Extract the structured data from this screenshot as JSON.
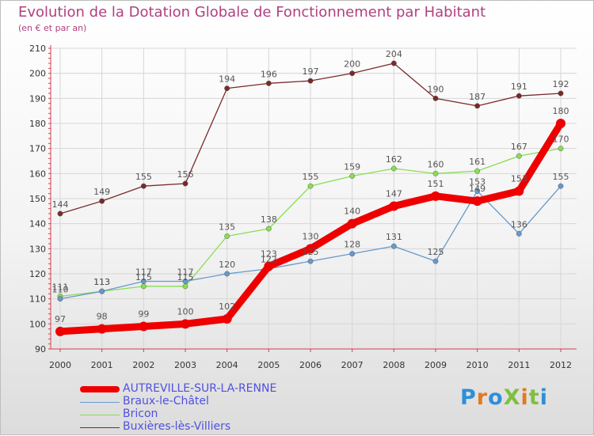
{
  "header": {
    "title": "Evolution de la Dotation Globale de Fonctionnement par Habitant",
    "subtitle": "(en € et par an)"
  },
  "brand": {
    "text": "ProXiti"
  },
  "colors": {
    "title": "#b04080",
    "legend_text": "#5050e0",
    "axis": "#d04050"
  },
  "chart_data": {
    "type": "line",
    "title": "Evolution de la Dotation Globale de Fonctionnement par Habitant",
    "subtitle": "(en € et par an)",
    "xlabel": "",
    "ylabel": "",
    "x": [
      "2000",
      "2001",
      "2002",
      "2003",
      "2004",
      "2005",
      "2006",
      "2007",
      "2008",
      "2009",
      "2010",
      "2011",
      "2012"
    ],
    "ylim": [
      90,
      210
    ],
    "yticks": [
      90,
      100,
      110,
      120,
      130,
      140,
      150,
      160,
      170,
      180,
      190,
      200,
      210
    ],
    "grid": true,
    "legend_position": "bottom-left",
    "series": [
      {
        "name": "AUTREVILLE-SUR-LA-RENNE",
        "color": "#ee0000",
        "thick": true,
        "values": [
          97,
          98,
          99,
          100,
          102,
          123,
          130,
          140,
          147,
          151,
          149,
          153,
          180
        ],
        "labels": [
          "97",
          "98",
          "99",
          "100",
          "102",
          "123",
          "130",
          "140",
          "147",
          "151",
          "149",
          "153",
          "180"
        ]
      },
      {
        "name": "Braux-le-Châtel",
        "color": "#6699cc",
        "thick": false,
        "values": [
          110,
          113,
          117,
          117,
          120,
          122,
          125,
          128,
          131,
          125,
          153,
          136,
          155
        ],
        "labels": [
          "110",
          "113",
          "117",
          "117",
          "120",
          "122",
          "125",
          "128",
          "131",
          "125",
          "153",
          "136",
          "155"
        ]
      },
      {
        "name": "Bricon",
        "color": "#88dd55",
        "thick": false,
        "values": [
          111,
          113,
          115,
          115,
          135,
          138,
          155,
          159,
          162,
          160,
          161,
          167,
          170
        ],
        "labels": [
          "111",
          "113",
          "115",
          "115",
          "135",
          "138",
          "155",
          "159",
          "162",
          "160",
          "161",
          "167",
          "170"
        ]
      },
      {
        "name": "Buxières-lès-Villiers",
        "color": "#7a2a2a",
        "thick": false,
        "values": [
          144,
          149,
          155,
          156,
          194,
          196,
          197,
          200,
          204,
          190,
          187,
          191,
          192
        ],
        "labels": [
          "144",
          "149",
          "155",
          "156",
          "194",
          "196",
          "197",
          "200",
          "204",
          "190",
          "187",
          "191",
          "192"
        ]
      }
    ]
  }
}
